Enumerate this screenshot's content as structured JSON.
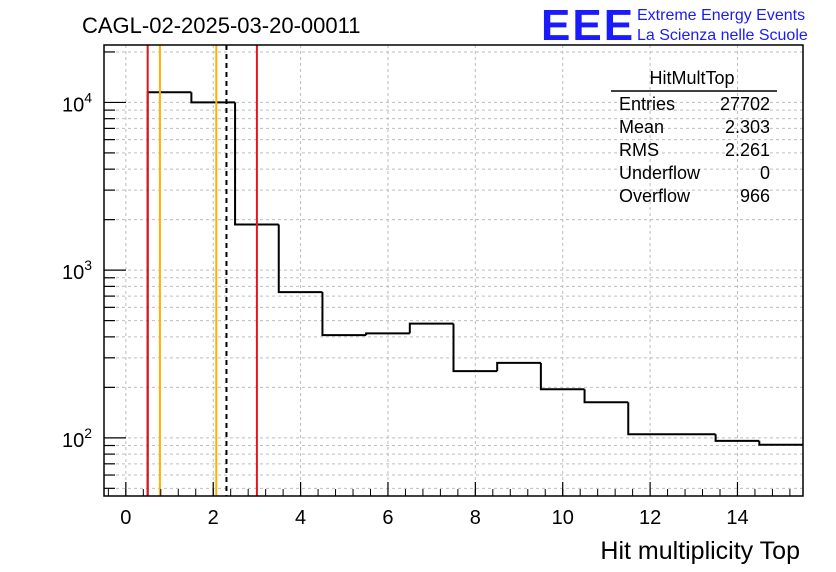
{
  "chart_data": {
    "type": "histogram",
    "title": "CAGL-02-2025-03-20-00011",
    "xlabel": "Hit multiplicity Top",
    "ylabel": "",
    "y_scale": "log",
    "xlim": [
      -0.5,
      15.5
    ],
    "ylim": [
      45,
      22000
    ],
    "x_ticks": [
      0,
      2,
      4,
      6,
      8,
      10,
      12,
      14
    ],
    "x_tick_labels": [
      "0",
      "2",
      "4",
      "6",
      "8",
      "10",
      "12",
      "14"
    ],
    "y_ticks": [
      100,
      1000,
      10000
    ],
    "y_tick_labels": [
      {
        "base": "10",
        "exp": "2"
      },
      {
        "base": "10",
        "exp": "3"
      },
      {
        "base": "10",
        "exp": "4"
      }
    ],
    "grid": true,
    "bins": [
      {
        "low": 0.5,
        "high": 1.5,
        "count": 11500
      },
      {
        "low": 1.5,
        "high": 2.5,
        "count": 10000
      },
      {
        "low": 2.5,
        "high": 3.5,
        "count": 1870
      },
      {
        "low": 3.5,
        "high": 4.5,
        "count": 740
      },
      {
        "low": 4.5,
        "high": 5.5,
        "count": 410
      },
      {
        "low": 5.5,
        "high": 6.5,
        "count": 420
      },
      {
        "low": 6.5,
        "high": 7.5,
        "count": 480
      },
      {
        "low": 7.5,
        "high": 8.5,
        "count": 250
      },
      {
        "low": 8.5,
        "high": 9.5,
        "count": 280
      },
      {
        "low": 9.5,
        "high": 10.5,
        "count": 195
      },
      {
        "low": 10.5,
        "high": 11.5,
        "count": 163
      },
      {
        "low": 11.5,
        "high": 13.5,
        "count": 105
      },
      {
        "low": 13.5,
        "high": 14.5,
        "count": 96
      },
      {
        "low": 14.5,
        "high": 15.5,
        "count": 91
      }
    ],
    "vertical_lines": [
      {
        "x": 0.5,
        "color": "#e8141b",
        "style": "solid"
      },
      {
        "x": 0.78,
        "color": "#ffb000",
        "style": "solid"
      },
      {
        "x": 2.07,
        "color": "#ffb000",
        "style": "solid"
      },
      {
        "x": 2.303,
        "color": "#000000",
        "style": "dashed"
      },
      {
        "x": 3.0,
        "color": "#e8141b",
        "style": "solid"
      }
    ],
    "stats_box": {
      "title": "HitMultTop",
      "rows": [
        {
          "label": "Entries",
          "value": "27702"
        },
        {
          "label": "Mean",
          "value": "2.303"
        },
        {
          "label": "RMS",
          "value": "2.261"
        },
        {
          "label": "Underflow",
          "value": "0"
        },
        {
          "label": "Overflow",
          "value": "966"
        }
      ]
    }
  },
  "logo": {
    "text": "EEE",
    "line1": "Extreme Energy Events",
    "line2": "La Scienza nelle Scuole",
    "color": "#1a1aff"
  }
}
